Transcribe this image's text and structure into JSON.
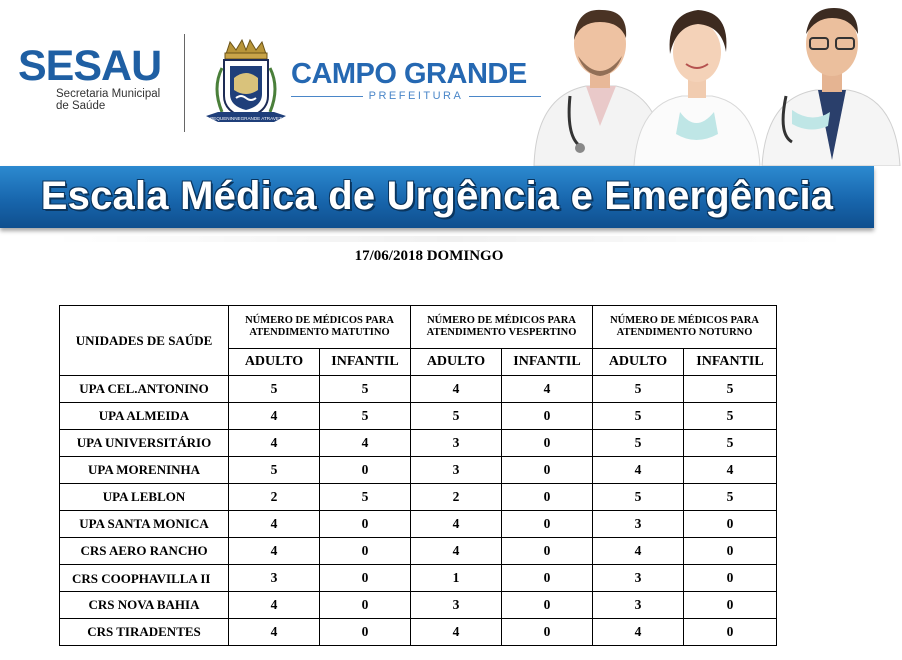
{
  "header": {
    "sesau_logo": "SESAU",
    "sesau_sub_line1": "Secretaria Municipal",
    "sesau_sub_line2": "de Saúde",
    "crest_motto": "PEQUENINNEGRANDE ATRAVEZ",
    "city_title": "CAMPO GRANDE",
    "city_sub": "PREFEITURA",
    "banner_title": "Escala Médica de Urgência e Emergência",
    "colors": {
      "brand_blue": "#1f5fa3",
      "banner_blue": "#1866ad"
    }
  },
  "date_line": "17/06/2018 DOMINGO",
  "table": {
    "unit_header": "UNIDADES DE SAÚDE",
    "groups": [
      "NÚMERO DE MÉDICOS PARA ATENDIMENTO MATUTINO",
      "NÚMERO DE MÉDICOS PARA ATENDIMENTO VESPERTINO",
      "NÚMERO DE MÉDICOS PARA ATENDIMENTO NOTURNO"
    ],
    "sub_headers": [
      "ADULTO",
      "INFANTIL",
      "ADULTO",
      "INFANTIL",
      "ADULTO",
      "INFANTIL"
    ],
    "rows": [
      {
        "unit": "UPA CEL.ANTONINO",
        "values": [
          "5",
          "5",
          "4",
          "4",
          "5",
          "5"
        ]
      },
      {
        "unit": "UPA ALMEIDA",
        "values": [
          "4",
          "5",
          "5",
          "0",
          "5",
          "5"
        ]
      },
      {
        "unit": "UPA UNIVERSITÁRIO",
        "values": [
          "4",
          "4",
          "3",
          "0",
          "5",
          "5"
        ]
      },
      {
        "unit": "UPA MORENINHA",
        "values": [
          "5",
          "0",
          "3",
          "0",
          "4",
          "4"
        ]
      },
      {
        "unit": "UPA LEBLON",
        "values": [
          "2",
          "5",
          "2",
          "0",
          "5",
          "5"
        ]
      },
      {
        "unit": "UPA SANTA MONICA",
        "values": [
          "4",
          "0",
          "4",
          "0",
          "3",
          "0"
        ]
      },
      {
        "unit": "CRS AERO RANCHO",
        "values": [
          "4",
          "0",
          "4",
          "0",
          "4",
          "0"
        ]
      },
      {
        "unit": "CRS COOPHAVILLA II",
        "values": [
          "3",
          "0",
          "1",
          "0",
          "3",
          "0"
        ]
      },
      {
        "unit": "CRS NOVA BAHIA",
        "values": [
          "4",
          "0",
          "3",
          "0",
          "3",
          "0"
        ]
      },
      {
        "unit": "CRS TIRADENTES",
        "values": [
          "4",
          "0",
          "4",
          "0",
          "4",
          "0"
        ]
      }
    ]
  }
}
